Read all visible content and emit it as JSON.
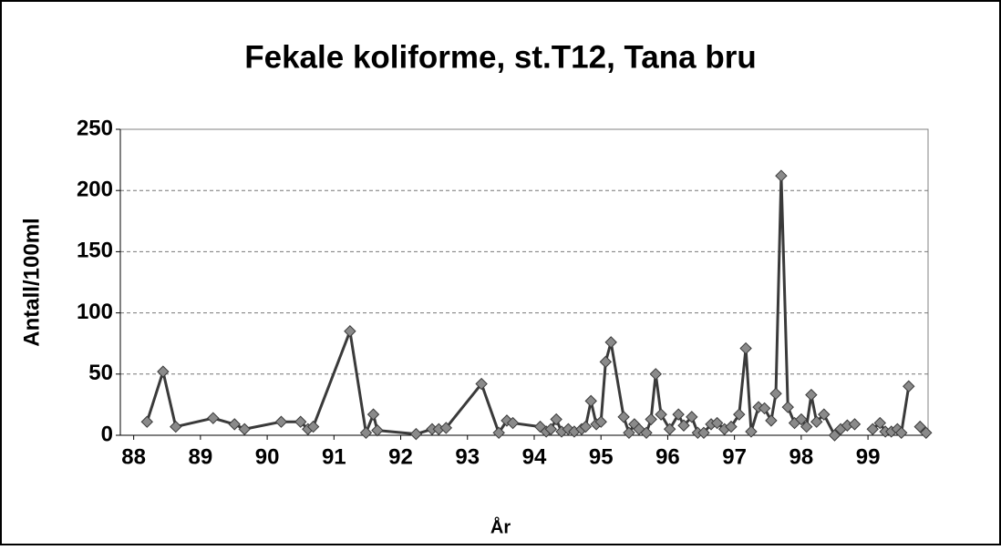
{
  "chart_data": {
    "type": "line",
    "title": "Fekale koliforme, st.T12, Tana bru",
    "x_label": "År",
    "y_label": "Antall/100ml",
    "x": [
      88.2,
      88.44,
      88.63,
      89.19,
      89.51,
      89.66,
      90.21,
      90.5,
      90.61,
      90.69,
      91.24,
      91.48,
      91.59,
      91.65,
      92.23,
      92.47,
      92.57,
      92.68,
      93.21,
      93.47,
      93.59,
      93.68,
      94.09,
      94.18,
      94.25,
      94.33,
      94.41,
      94.51,
      94.6,
      94.71,
      94.77,
      94.85,
      94.93,
      95.0,
      95.07,
      95.15,
      95.34,
      95.42,
      95.5,
      95.57,
      95.68,
      95.75,
      95.82,
      95.9,
      96.03,
      96.16,
      96.24,
      96.36,
      96.45,
      96.54,
      96.65,
      96.74,
      96.85,
      96.95,
      97.07,
      97.17,
      97.25,
      97.36,
      97.45,
      97.55,
      97.62,
      97.7,
      97.8,
      97.9,
      98.0,
      98.08,
      98.15,
      98.23,
      98.34,
      98.5,
      98.59,
      98.69,
      98.8,
      null,
      99.07,
      99.18,
      99.26,
      99.35,
      99.44,
      99.5,
      99.61,
      null,
      99.78,
      99.87
    ],
    "series": [
      {
        "name": "Fekale koliforme",
        "color": "#3a3a3a",
        "marker_color": "#8a8a8a",
        "values": [
          11,
          52,
          7,
          14,
          9,
          5,
          11,
          11,
          5,
          7,
          85,
          2,
          17,
          4,
          1,
          5,
          5,
          6,
          42,
          2,
          12,
          10,
          7,
          3,
          5,
          13,
          3,
          5,
          3,
          5,
          7,
          28,
          9,
          11,
          60,
          76,
          15,
          2,
          9,
          5,
          2,
          13,
          50,
          17,
          5,
          17,
          8,
          15,
          2,
          2,
          9,
          10,
          5,
          7,
          17,
          71,
          3,
          23,
          22,
          12,
          34,
          212,
          23,
          10,
          13,
          7,
          33,
          11,
          17,
          0,
          5,
          8,
          9,
          null,
          5,
          10,
          3,
          3,
          5,
          2,
          40,
          null,
          7,
          2
        ]
      }
    ],
    "xlim": [
      87.8,
      99.9
    ],
    "xticks": [
      88,
      89,
      90,
      91,
      92,
      93,
      94,
      95,
      96,
      97,
      98,
      99
    ],
    "ylim": [
      0,
      250
    ],
    "yticks": [
      0,
      50,
      100,
      150,
      200,
      250
    ],
    "grid": true
  }
}
